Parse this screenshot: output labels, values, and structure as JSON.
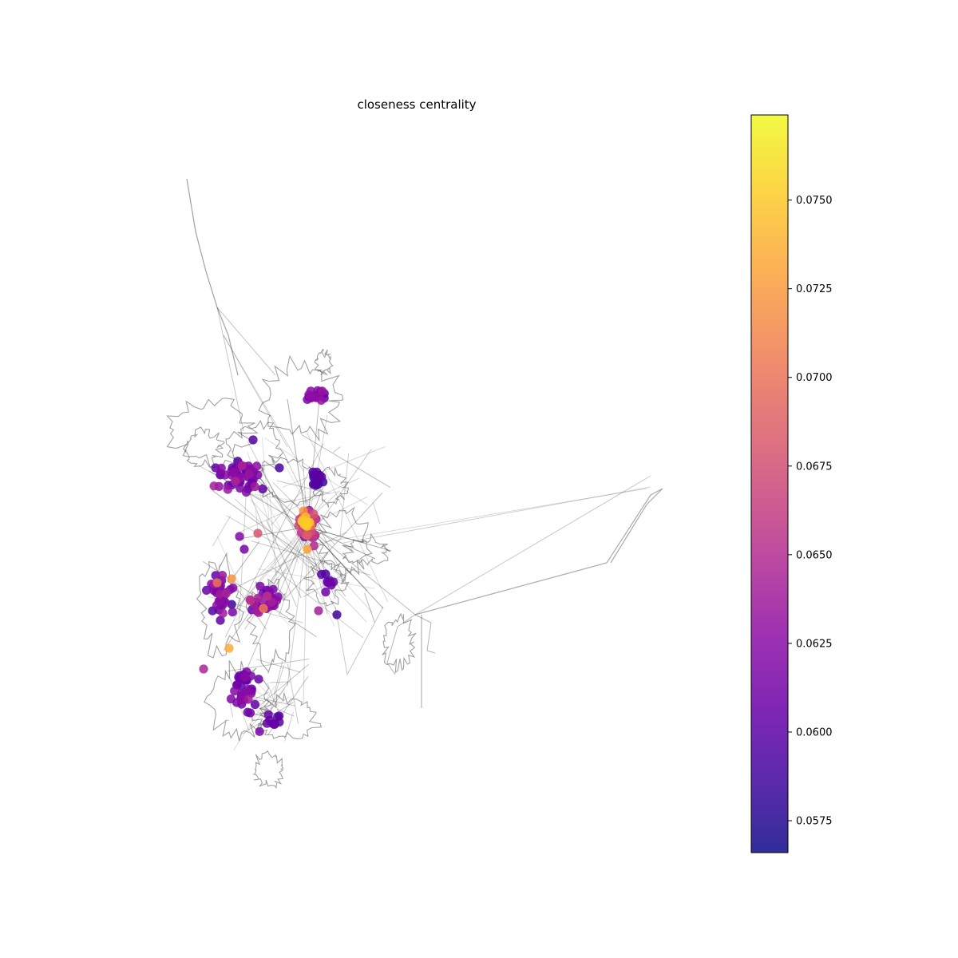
{
  "chart_data": {
    "type": "scatter",
    "title": "closeness centrality",
    "colormap": "plasma",
    "colorbar": {
      "min": 0.0566,
      "max": 0.0774,
      "ticks": [
        0.0575,
        0.06,
        0.0625,
        0.065,
        0.0675,
        0.07,
        0.0725,
        0.075
      ],
      "tick_labels": [
        "0.0575",
        "0.0600",
        "0.0625",
        "0.0650",
        "0.0675",
        "0.0700",
        "0.0725",
        "0.0750"
      ]
    },
    "grid": false,
    "axes_visible": false
  }
}
